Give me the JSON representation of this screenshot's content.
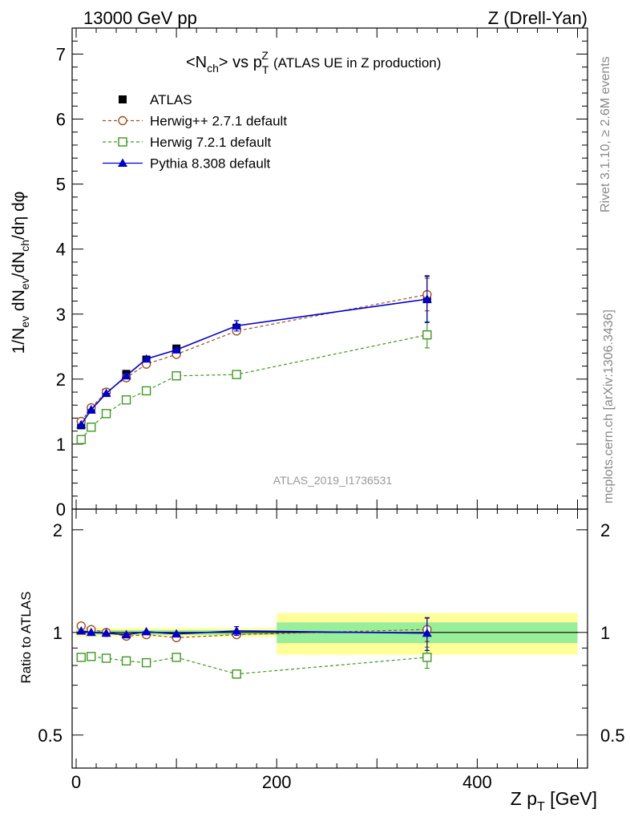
{
  "header": {
    "left": "13000 GeV pp",
    "right": "Z (Drell-Yan)"
  },
  "plot_title": {
    "main": "<N",
    "main_sub": "ch",
    "main_rest": "> vs p",
    "pt_sub": "T",
    "pt_sup": "Z",
    "desc": "(ATLAS UE in Z production)"
  },
  "watermark": "ATLAS_2019_I1736531",
  "side_text": {
    "rivet": "Rivet 3.1.10, ≥ 2.6M events",
    "mcplots": "mcplots.cern.ch [arXiv:1306.3436]"
  },
  "colors": {
    "atlas": "#000000",
    "herwigpp": "#a0501e",
    "herwig7": "#3c9a1e",
    "pythia": "#0000cc",
    "band_inner": "#99ee99",
    "band_outer": "#ffff99"
  },
  "chart_data": [
    {
      "type": "line",
      "panel": "main",
      "ylabel": "1/N_ev dN_ev/dN_ch/dη dφ",
      "ylim": [
        0,
        7.4
      ],
      "xlim": [
        -4,
        510
      ],
      "yticks": [
        0,
        1,
        2,
        3,
        4,
        5,
        6,
        7
      ],
      "legend_position": "top-left",
      "x": [
        5,
        15,
        30,
        50,
        70,
        100,
        160,
        350
      ],
      "series": [
        {
          "name": "ATLAS",
          "marker": "filled-square",
          "values": [
            1.29,
            1.53,
            1.79,
            2.08,
            2.3,
            2.47,
            2.79,
            3.23
          ],
          "errors": [
            0.02,
            0.02,
            0.02,
            0.02,
            0.03,
            0.03,
            0.06,
            0.35
          ]
        },
        {
          "name": "Herwig++ 2.7.1 default",
          "marker": "open-circle",
          "values": [
            1.35,
            1.56,
            1.8,
            2.02,
            2.23,
            2.38,
            2.74,
            3.3
          ],
          "errors": [
            0.02,
            0.02,
            0.02,
            0.02,
            0.02,
            0.03,
            0.05,
            0.25
          ]
        },
        {
          "name": "Herwig 7.2.1 default",
          "marker": "open-square",
          "values": [
            1.07,
            1.26,
            1.47,
            1.68,
            1.82,
            2.05,
            2.07,
            2.68
          ],
          "errors": [
            0.02,
            0.02,
            0.02,
            0.02,
            0.02,
            0.03,
            0.04,
            0.2
          ]
        },
        {
          "name": "Pythia 8.308 default",
          "marker": "filled-triangle",
          "values": [
            1.3,
            1.53,
            1.78,
            2.05,
            2.31,
            2.45,
            2.82,
            3.23
          ],
          "errors": [
            0.02,
            0.02,
            0.02,
            0.02,
            0.03,
            0.03,
            0.08,
            0.36
          ]
        }
      ]
    },
    {
      "type": "line",
      "panel": "ratio",
      "ylabel": "Ratio to ATLAS",
      "xlabel": "Z p_T [GeV]",
      "ylim": [
        0.4,
        2.3
      ],
      "ylog": true,
      "xlim": [
        -4,
        510
      ],
      "yticks": [
        0.5,
        1,
        2
      ],
      "xticks": [
        0,
        200,
        400
      ],
      "x": [
        5,
        15,
        30,
        50,
        70,
        100,
        160,
        350
      ],
      "bands": [
        {
          "x_from": 0,
          "x_to": 200,
          "inner": 0.015,
          "outer": 0.03
        },
        {
          "x_from": 200,
          "x_to": 500,
          "inner": 0.07,
          "outer": 0.14
        }
      ],
      "series": [
        {
          "name": "Herwig++ 2.7.1 default",
          "values": [
            1.045,
            1.02,
            1.0,
            0.975,
            0.985,
            0.965,
            0.985,
            1.02
          ],
          "errors": [
            0.01,
            0.01,
            0.01,
            0.01,
            0.01,
            0.01,
            0.02,
            0.08
          ]
        },
        {
          "name": "Herwig 7.2.1 default",
          "values": [
            0.845,
            0.85,
            0.84,
            0.825,
            0.815,
            0.845,
            0.755,
            0.845
          ],
          "errors": [
            0.01,
            0.01,
            0.01,
            0.01,
            0.01,
            0.01,
            0.02,
            0.06
          ]
        },
        {
          "name": "Pythia 8.308 default",
          "values": [
            1.01,
            1.0,
            0.995,
            0.985,
            1.005,
            0.99,
            1.01,
            0.995
          ],
          "errors": [
            0.01,
            0.01,
            0.01,
            0.01,
            0.01,
            0.01,
            0.03,
            0.11
          ]
        }
      ]
    }
  ]
}
